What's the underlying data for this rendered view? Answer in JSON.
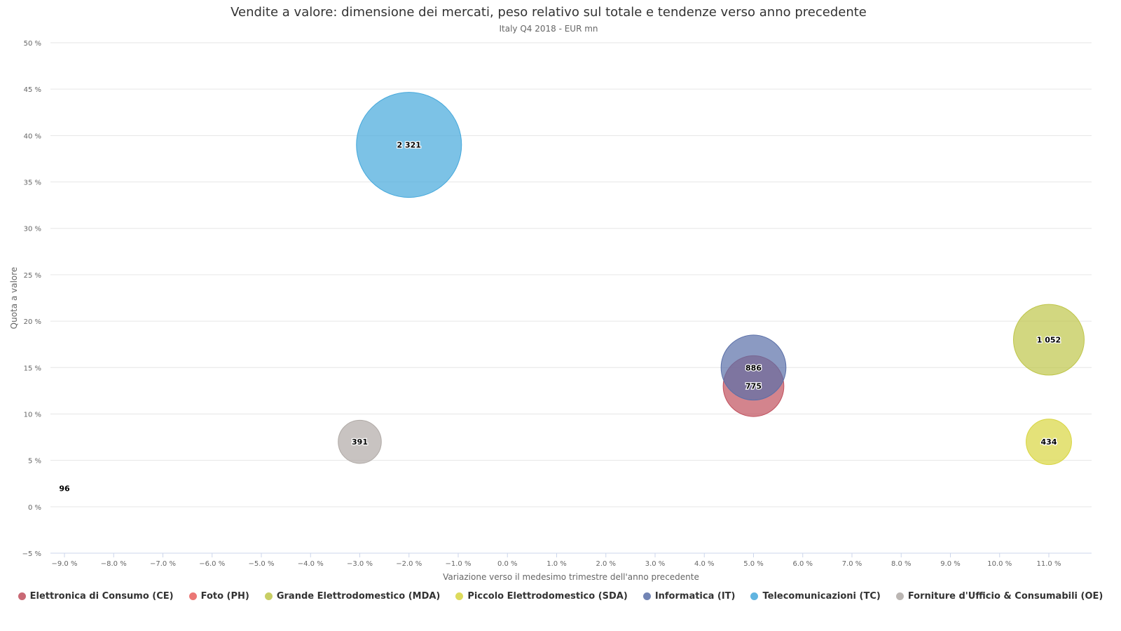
{
  "chart_data": {
    "type": "bubble",
    "title": "Vendite a valore: dimensione dei mercati, peso relativo sul totale e tendenze verso anno precedente",
    "subtitle": "Italy Q4 2018 - EUR mn",
    "xlabel": "Variazione verso il medesimo trimestre dell'anno precedente",
    "ylabel": "Quota a valore",
    "xlim": [
      -9.0,
      11.0
    ],
    "ylim": [
      -5,
      50
    ],
    "x_ticks": [
      -9.0,
      -8.0,
      -7.0,
      -6.0,
      -5.0,
      -4.0,
      -3.0,
      -2.0,
      -1.0,
      0.0,
      1.0,
      2.0,
      3.0,
      4.0,
      5.0,
      6.0,
      7.0,
      8.0,
      9.0,
      10.0,
      11.0
    ],
    "x_tick_labels": [
      "−9.0 %",
      "−8.0 %",
      "−7.0 %",
      "−6.0 %",
      "−5.0 %",
      "−4.0 %",
      "−3.0 %",
      "−2.0 %",
      "−1.0 %",
      "0.0 %",
      "1.0 %",
      "2.0 %",
      "3.0 %",
      "4.0 %",
      "5.0 %",
      "6.0 %",
      "7.0 %",
      "8.0 %",
      "9.0 %",
      "10.0 %",
      "11.0 %"
    ],
    "y_ticks": [
      -5,
      0,
      5,
      10,
      15,
      20,
      25,
      30,
      35,
      40,
      45,
      50
    ],
    "y_tick_labels": [
      "−5 %",
      "0 %",
      "5 %",
      "10 %",
      "15 %",
      "20 %",
      "25 %",
      "30 %",
      "35 %",
      "40 %",
      "45 %",
      "50 %"
    ],
    "grid": true,
    "legend_position": "bottom-center",
    "series": [
      {
        "name": "Elettronica di Consumo (CE)",
        "x": 5.0,
        "y": 13,
        "value": 775,
        "label": "775",
        "color": "#c0505d"
      },
      {
        "name": "Foto (PH)",
        "x": -9.0,
        "y": 2,
        "value": 96,
        "label": "96",
        "color": "#e8605e"
      },
      {
        "name": "Grande Elettrodomestico (MDA)",
        "x": 11.0,
        "y": 18,
        "value": 1052,
        "label": "1 052",
        "color": "#bfc64a"
      },
      {
        "name": "Piccolo Elettrodomestico (SDA)",
        "x": 11.0,
        "y": 7,
        "value": 434,
        "label": "434",
        "color": "#d8d540"
      },
      {
        "name": "Informatica (IT)",
        "x": 5.0,
        "y": 15,
        "value": 886,
        "label": "886",
        "color": "#5a6fa8"
      },
      {
        "name": "Telecomunicazioni (TC)",
        "x": -2.0,
        "y": 39,
        "value": 2321,
        "label": "2 321",
        "color": "#45a8db"
      },
      {
        "name": "Forniture d'Ufficio & Consumabili (OE)",
        "x": -3.0,
        "y": 7,
        "value": 391,
        "label": "391",
        "color": "#b0aaa6"
      }
    ]
  }
}
